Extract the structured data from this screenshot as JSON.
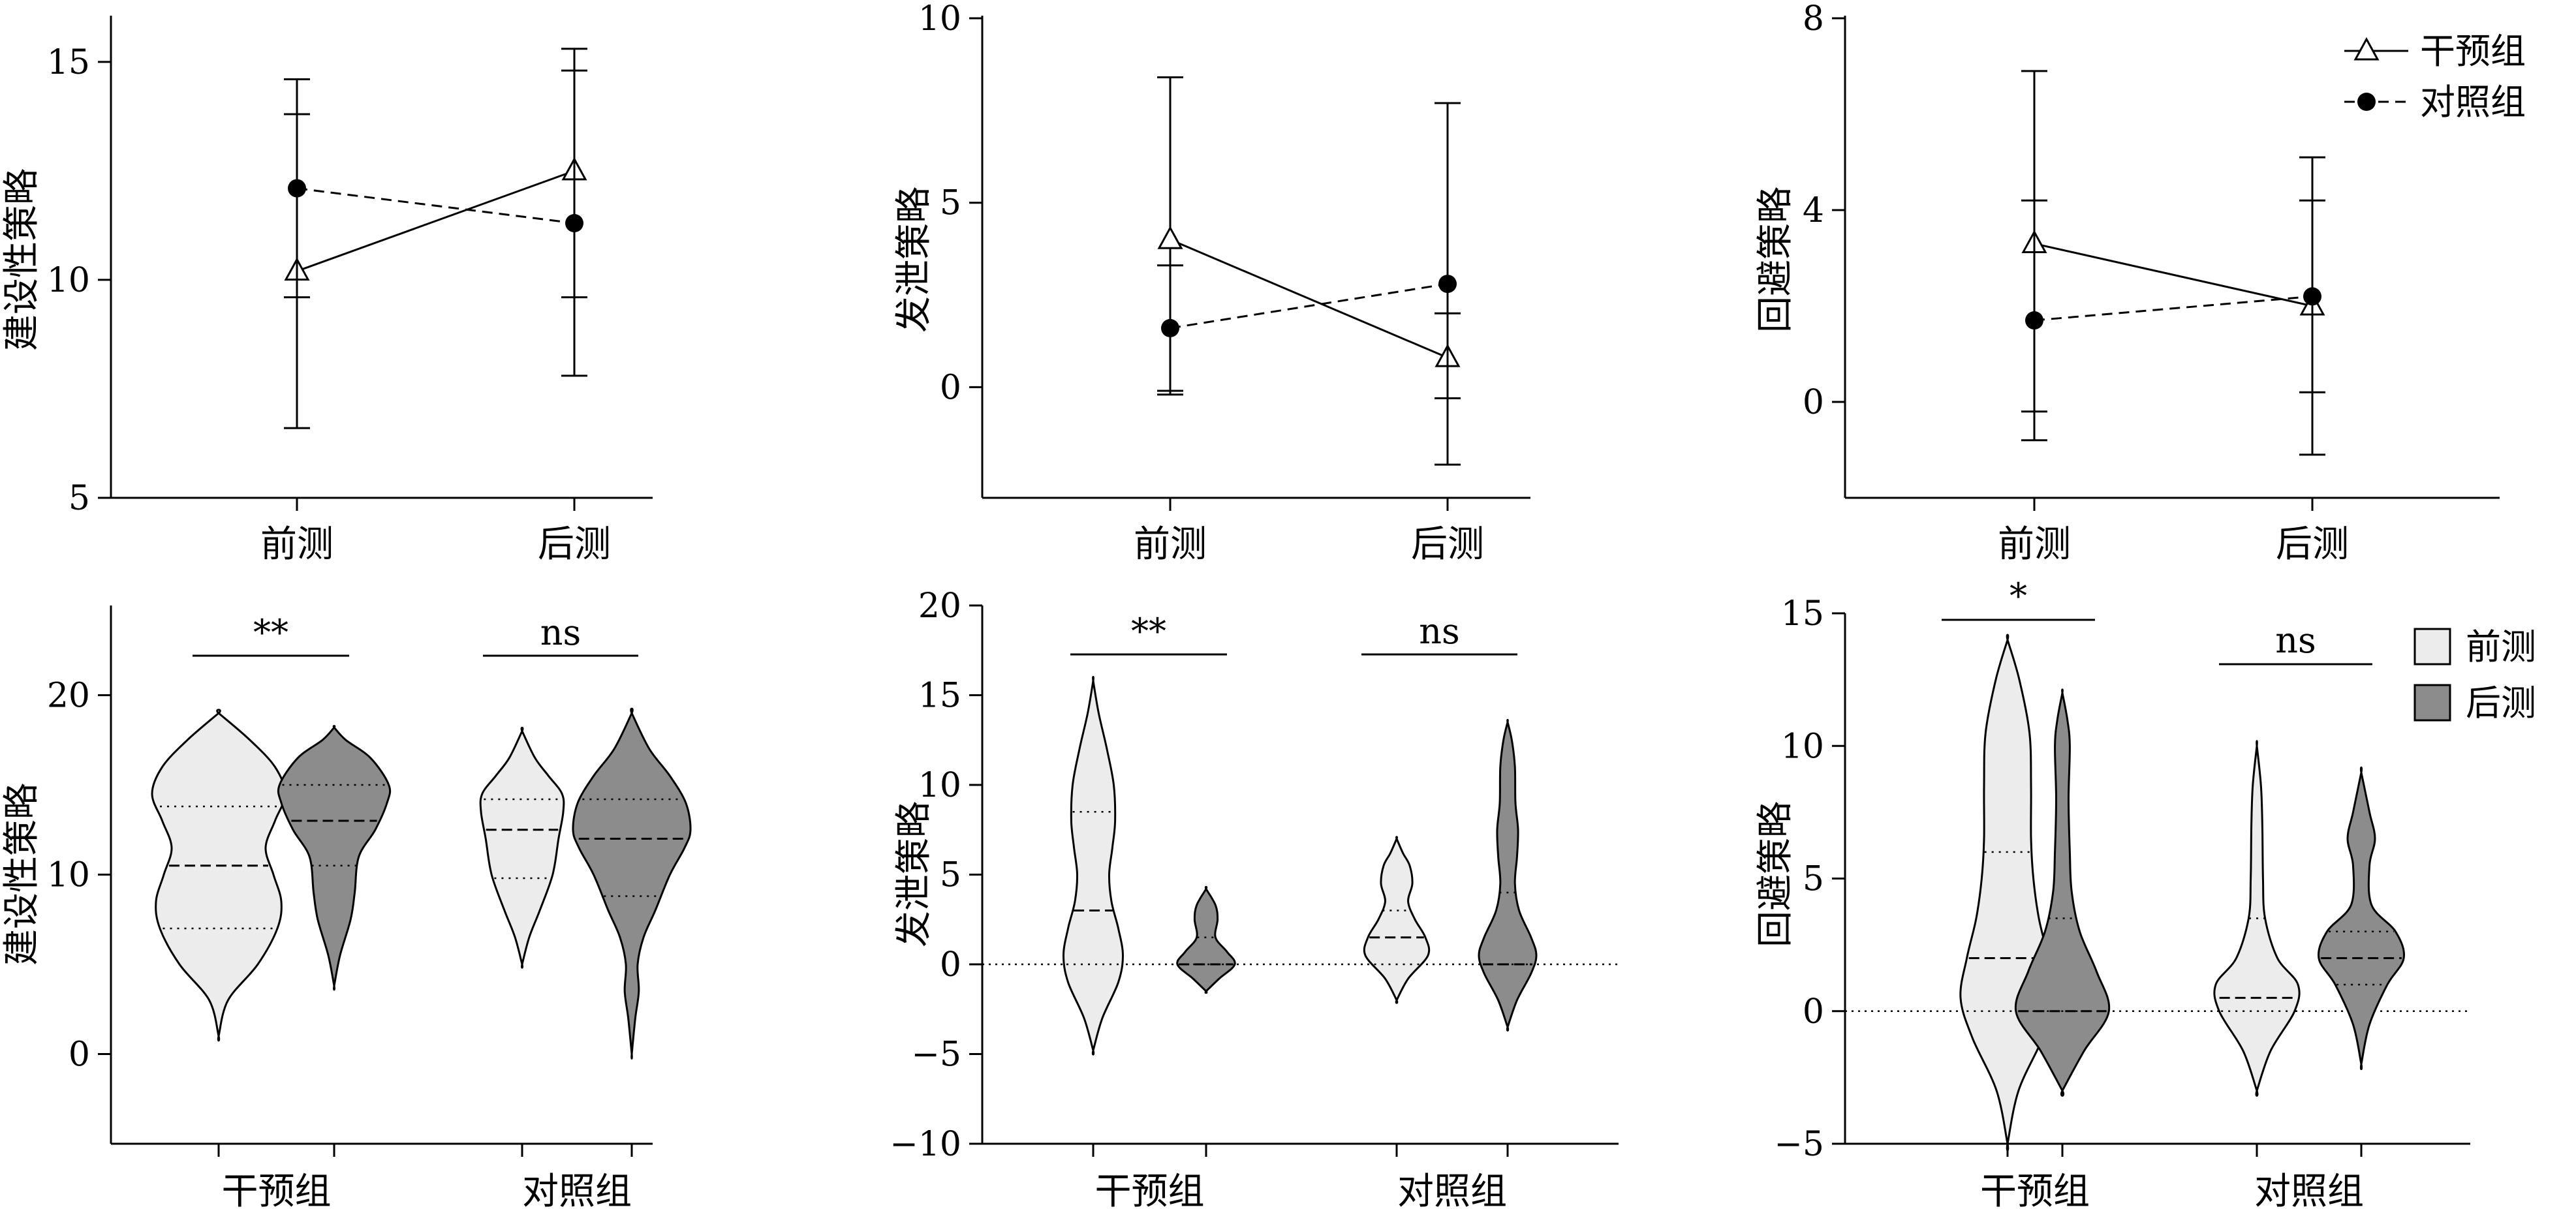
{
  "colors": {
    "pre_fill": "#ececec",
    "post_fill": "#8c8c8c",
    "stroke": "#000000"
  },
  "chart_data": [
    {
      "type": "line",
      "panel": "top-1",
      "ylabel": "建设性策略",
      "ylim": [
        5,
        16
      ],
      "yticks": [
        "5",
        "10",
        "15"
      ],
      "categories": [
        "前测",
        "后测"
      ],
      "series": [
        {
          "name": "干预组",
          "marker": "open-triangle",
          "line": "solid",
          "values": [
            10.2,
            12.5
          ],
          "err_low": [
            6.6,
            9.6
          ],
          "err_high": [
            13.8,
            15.3
          ]
        },
        {
          "name": "对照组",
          "marker": "filled-circle",
          "line": "dashed",
          "values": [
            12.1,
            11.3
          ],
          "err_low": [
            9.6,
            7.8
          ],
          "err_high": [
            14.6,
            14.8
          ]
        }
      ]
    },
    {
      "type": "line",
      "panel": "top-2",
      "ylabel": "发泄策略",
      "ylim": [
        -3,
        10
      ],
      "yticks": [
        "0",
        "5",
        "10"
      ],
      "categories": [
        "前测",
        "后测"
      ],
      "series": [
        {
          "name": "干预组",
          "marker": "open-triangle",
          "line": "solid",
          "values": [
            4.0,
            0.8
          ],
          "err_low": [
            -0.2,
            -2.1
          ],
          "err_high": [
            8.4,
            2.0
          ]
        },
        {
          "name": "对照组",
          "marker": "filled-circle",
          "line": "dashed",
          "values": [
            1.6,
            2.8
          ],
          "err_low": [
            -0.1,
            -0.3
          ],
          "err_high": [
            3.3,
            7.7
          ]
        }
      ]
    },
    {
      "type": "line",
      "panel": "top-3",
      "ylabel": "回避策略",
      "ylim": [
        -2,
        8
      ],
      "yticks": [
        "0",
        "4",
        "8"
      ],
      "categories": [
        "前测",
        "后测"
      ],
      "legend": {
        "position": "top-right",
        "entries": [
          "干预组",
          "对照组"
        ]
      },
      "series": [
        {
          "name": "干预组",
          "marker": "open-triangle",
          "line": "solid",
          "values": [
            3.3,
            2.0
          ],
          "err_low": [
            -0.2,
            -1.1
          ],
          "err_high": [
            6.9,
            4.2
          ]
        },
        {
          "name": "对照组",
          "marker": "filled-circle",
          "line": "dashed",
          "values": [
            1.7,
            2.2
          ],
          "err_low": [
            -0.8,
            0.2
          ],
          "err_high": [
            4.2,
            5.1
          ]
        }
      ]
    },
    {
      "type": "violin",
      "panel": "bottom-1",
      "ylabel": "建设性策略",
      "ylim": [
        -5,
        25
      ],
      "yticks": [
        "0",
        "10",
        "20"
      ],
      "categories": [
        "干预组",
        "对照组"
      ],
      "significance": [
        "**",
        "ns"
      ],
      "violins": [
        {
          "group": "干预组",
          "phase": "前测",
          "min": 1.0,
          "max": 19.0,
          "q1": 7.0,
          "median": 10.5,
          "q3": 13.8,
          "profile": [
            [
              1,
              0
            ],
            [
              3,
              0.12
            ],
            [
              5,
              0.5
            ],
            [
              7,
              0.75
            ],
            [
              8.5,
              0.8
            ],
            [
              10,
              0.7
            ],
            [
              11.5,
              0.6
            ],
            [
              13,
              0.72
            ],
            [
              14.5,
              0.85
            ],
            [
              16,
              0.72
            ],
            [
              17.5,
              0.4
            ],
            [
              19,
              0
            ]
          ]
        },
        {
          "group": "干预组",
          "phase": "后测",
          "min": 3.8,
          "max": 18.2,
          "q1": 10.5,
          "median": 13.0,
          "q3": 15.0,
          "profile": [
            [
              3.8,
              0
            ],
            [
              5.5,
              0.1
            ],
            [
              7.5,
              0.28
            ],
            [
              9,
              0.35
            ],
            [
              11,
              0.42
            ],
            [
              12.5,
              0.7
            ],
            [
              14,
              0.9
            ],
            [
              15,
              0.93
            ],
            [
              16.5,
              0.62
            ],
            [
              17.5,
              0.2
            ],
            [
              18.2,
              0
            ]
          ]
        },
        {
          "group": "对照组",
          "phase": "前测",
          "min": 5.0,
          "max": 18.0,
          "q1": 9.8,
          "median": 12.5,
          "q3": 14.2,
          "profile": [
            [
              5,
              0
            ],
            [
              6.5,
              0.12
            ],
            [
              8,
              0.3
            ],
            [
              10,
              0.52
            ],
            [
              12,
              0.62
            ],
            [
              13.5,
              0.7
            ],
            [
              14.5,
              0.68
            ],
            [
              15.5,
              0.45
            ],
            [
              16.5,
              0.22
            ],
            [
              18,
              0
            ]
          ]
        },
        {
          "group": "对照组",
          "phase": "后测",
          "min": 0.0,
          "max": 19.0,
          "q1": 8.8,
          "median": 12.0,
          "q3": 14.2,
          "profile": [
            [
              0,
              0
            ],
            [
              2,
              0.06
            ],
            [
              3.5,
              0.12
            ],
            [
              5,
              0.1
            ],
            [
              6.5,
              0.2
            ],
            [
              8,
              0.4
            ],
            [
              10,
              0.65
            ],
            [
              11.5,
              0.9
            ],
            [
              12.5,
              1.0
            ],
            [
              14,
              0.92
            ],
            [
              15.5,
              0.65
            ],
            [
              17,
              0.3
            ],
            [
              19,
              0
            ]
          ]
        }
      ]
    },
    {
      "type": "violin",
      "panel": "bottom-2",
      "ylabel": "发泄策略",
      "ylim": [
        -10,
        20
      ],
      "yticks": [
        "−10",
        "−5",
        "0",
        "5",
        "10",
        "15",
        "20"
      ],
      "categories": [
        "干预组",
        "对照组"
      ],
      "significance": [
        "**",
        "ns"
      ],
      "zero_line": true,
      "violins": [
        {
          "group": "干预组",
          "phase": "前测",
          "min": -4.8,
          "max": 15.8,
          "q1": 0.0,
          "median": 3.0,
          "q3": 8.5,
          "profile": [
            [
              -4.8,
              0
            ],
            [
              -3,
              0.2
            ],
            [
              -1,
              0.55
            ],
            [
              0.5,
              0.65
            ],
            [
              2,
              0.55
            ],
            [
              3.5,
              0.4
            ],
            [
              5,
              0.35
            ],
            [
              6.5,
              0.42
            ],
            [
              8,
              0.48
            ],
            [
              10,
              0.45
            ],
            [
              12,
              0.3
            ],
            [
              14,
              0.12
            ],
            [
              15.8,
              0
            ]
          ]
        },
        {
          "group": "干预组",
          "phase": "后测",
          "min": -1.5,
          "max": 4.2,
          "q1": 0.0,
          "median": 0.0,
          "q3": 1.5,
          "profile": [
            [
              -1.5,
              0
            ],
            [
              -0.8,
              0.25
            ],
            [
              0,
              0.55
            ],
            [
              0.7,
              0.4
            ],
            [
              1.5,
              0.18
            ],
            [
              2.5,
              0.22
            ],
            [
              3.3,
              0.18
            ],
            [
              4.2,
              0
            ]
          ]
        },
        {
          "group": "对照组",
          "phase": "前测",
          "min": -2.0,
          "max": 7.0,
          "q1": 0.0,
          "median": 1.5,
          "q3": 3.0,
          "profile": [
            [
              -2,
              0
            ],
            [
              -0.8,
              0.22
            ],
            [
              0.5,
              0.6
            ],
            [
              1.5,
              0.55
            ],
            [
              2.5,
              0.35
            ],
            [
              3.5,
              0.22
            ],
            [
              4.5,
              0.3
            ],
            [
              5.5,
              0.25
            ],
            [
              6.2,
              0.12
            ],
            [
              7,
              0
            ]
          ]
        },
        {
          "group": "对照组",
          "phase": "后测",
          "min": -3.5,
          "max": 13.5,
          "q1": 0.0,
          "median": 0.0,
          "q3": 4.0,
          "profile": [
            [
              -3.5,
              0
            ],
            [
              -2,
              0.18
            ],
            [
              -0.5,
              0.45
            ],
            [
              0.5,
              0.55
            ],
            [
              1.5,
              0.45
            ],
            [
              3,
              0.22
            ],
            [
              4.5,
              0.14
            ],
            [
              6,
              0.18
            ],
            [
              7.5,
              0.2
            ],
            [
              9,
              0.15
            ],
            [
              11,
              0.14
            ],
            [
              12.5,
              0.08
            ],
            [
              13.5,
              0
            ]
          ]
        }
      ]
    },
    {
      "type": "violin",
      "panel": "bottom-3",
      "ylabel": "回避策略",
      "ylim": [
        -5,
        15
      ],
      "yticks": [
        "−5",
        "0",
        "5",
        "10",
        "15"
      ],
      "categories": [
        "干预组",
        "对照组"
      ],
      "significance": [
        "*",
        "ns"
      ],
      "zero_line": true,
      "legend": {
        "position": "top-right",
        "entries": [
          "前测",
          "后测"
        ]
      },
      "violins": [
        {
          "group": "干预组",
          "phase": "前测",
          "min": -5.0,
          "max": 14.0,
          "q1": 0.0,
          "median": 2.0,
          "q3": 6.0,
          "profile": [
            [
              -5,
              0
            ],
            [
              -3,
              0.14
            ],
            [
              -1,
              0.45
            ],
            [
              0.5,
              0.6
            ],
            [
              2,
              0.52
            ],
            [
              3.5,
              0.4
            ],
            [
              5,
              0.33
            ],
            [
              6.5,
              0.3
            ],
            [
              8.5,
              0.3
            ],
            [
              10.5,
              0.28
            ],
            [
              12.5,
              0.15
            ],
            [
              14,
              0
            ]
          ]
        },
        {
          "group": "干预组",
          "phase": "后测",
          "min": -3.0,
          "max": 12.0,
          "q1": 0.0,
          "median": 0.0,
          "q3": 3.5,
          "profile": [
            [
              -3,
              0
            ],
            [
              -1.5,
              0.35
            ],
            [
              0,
              0.75
            ],
            [
              1.5,
              0.55
            ],
            [
              3,
              0.28
            ],
            [
              4.5,
              0.15
            ],
            [
              6,
              0.12
            ],
            [
              8,
              0.1
            ],
            [
              10,
              0.12
            ],
            [
              11,
              0.08
            ],
            [
              12,
              0
            ]
          ]
        },
        {
          "group": "对照组",
          "phase": "前测",
          "min": -3.0,
          "max": 10.0,
          "q1": 0.0,
          "median": 0.5,
          "q3": 3.5,
          "profile": [
            [
              -3,
              0
            ],
            [
              -1.5,
              0.2
            ],
            [
              0,
              0.55
            ],
            [
              1,
              0.6
            ],
            [
              2,
              0.3
            ],
            [
              3.5,
              0.12
            ],
            [
              5,
              0.09
            ],
            [
              7,
              0.08
            ],
            [
              8.5,
              0.06
            ],
            [
              10,
              0
            ]
          ]
        },
        {
          "group": "对照组",
          "phase": "后测",
          "min": -2.0,
          "max": 9.0,
          "q1": 1.0,
          "median": 2.0,
          "q3": 3.0,
          "profile": [
            [
              -2,
              0
            ],
            [
              -0.5,
              0.12
            ],
            [
              1,
              0.38
            ],
            [
              2,
              0.62
            ],
            [
              3,
              0.5
            ],
            [
              4,
              0.15
            ],
            [
              5.5,
              0.12
            ],
            [
              6.5,
              0.2
            ],
            [
              7.5,
              0.12
            ],
            [
              9,
              0
            ]
          ]
        }
      ]
    }
  ]
}
